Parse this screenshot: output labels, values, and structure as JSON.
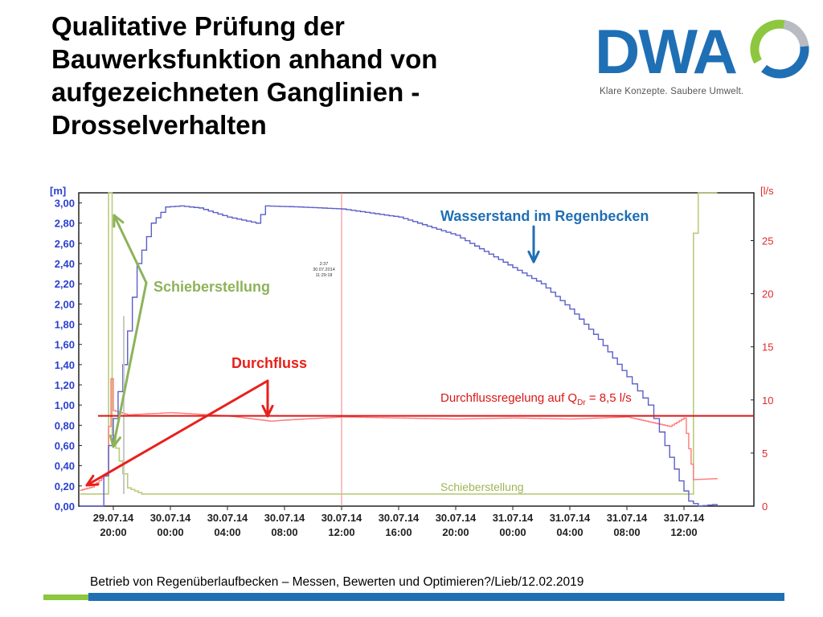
{
  "slide": {
    "title_lines": [
      "Qualitative Prüfung der",
      "Bauwerksfunktion anhand von",
      "aufgezeichneten Ganglinien -",
      "Drosselverhalten"
    ],
    "logo": {
      "text": "DWA",
      "tagline": "Klare Konzepte. Saubere Umwelt."
    },
    "footer": "Betrieb von Regenüberlaufbecken – Messen, Bewerten und Optimieren?/Lieb/12.02.2019"
  },
  "colors": {
    "level_blue": "#5b5fc8",
    "flow_red": "#ff7a7a",
    "setpoint_red": "#d81818",
    "gate_green": "#b9cc7a",
    "annot_blue": "#1f6fb5",
    "annot_green": "#8db35a",
    "annot_red": "#e8201b",
    "left_axis": "#2a3fd0",
    "right_axis": "#e02a2a"
  },
  "chart_data": {
    "type": "line",
    "y_left": {
      "unit_label": "[m]",
      "ylim": [
        0,
        3.1
      ],
      "ticks": [
        "0,00",
        "0,20",
        "0,40",
        "0,60",
        "0,80",
        "1,00",
        "1,20",
        "1,40",
        "1,60",
        "1,80",
        "2,00",
        "2,20",
        "2,40",
        "2,60",
        "2,80",
        "3,00"
      ]
    },
    "y_right": {
      "unit_label": "[l/s",
      "ylim": [
        0,
        29.5
      ],
      "ticks": [
        "0",
        "5",
        "10",
        "15",
        "20",
        "25"
      ]
    },
    "x_ticks": [
      {
        "date": "29.07.14",
        "time": "20:00"
      },
      {
        "date": "30.07.14",
        "time": "00:00"
      },
      {
        "date": "30.07.14",
        "time": "04:00"
      },
      {
        "date": "30.07.14",
        "time": "08:00"
      },
      {
        "date": "30.07.14",
        "time": "12:00"
      },
      {
        "date": "30.07.14",
        "time": "16:00"
      },
      {
        "date": "30.07.14",
        "time": "20:00"
      },
      {
        "date": "31.07.14",
        "time": "00:00"
      },
      {
        "date": "31.07.14",
        "time": "04:00"
      },
      {
        "date": "31.07.14",
        "time": "08:00"
      },
      {
        "date": "31.07.14",
        "time": "12:00"
      }
    ],
    "series": [
      {
        "name": "Wasserstand im Regenbecken",
        "axis": "left",
        "points": [
          [
            "29.07.14 17:40",
            0.0
          ],
          [
            "29.07.14 19:00",
            0.0
          ],
          [
            "29.07.14 19:40",
            0.6
          ],
          [
            "29.07.14 20:40",
            1.4
          ],
          [
            "29.07.14 21:40",
            2.4
          ],
          [
            "29.07.14 22:40",
            2.8
          ],
          [
            "29.07.14 23:40",
            2.96
          ],
          [
            "30.07.14 00:40",
            2.97
          ],
          [
            "30.07.14 02:00",
            2.95
          ],
          [
            "30.07.14 04:00",
            2.86
          ],
          [
            "30.07.14 06:00",
            2.8
          ],
          [
            "30.07.14 06:40",
            2.97
          ],
          [
            "30.07.14 09:00",
            2.96
          ],
          [
            "30.07.14 12:00",
            2.94
          ],
          [
            "30.07.14 16:00",
            2.86
          ],
          [
            "30.07.14 20:00",
            2.68
          ],
          [
            "31.07.14 00:00",
            2.36
          ],
          [
            "31.07.14 02:00",
            2.2
          ],
          [
            "31.07.14 04:00",
            1.95
          ],
          [
            "31.07.14 06:00",
            1.65
          ],
          [
            "31.07.14 08:00",
            1.28
          ],
          [
            "31.07.14 09:30",
            1.0
          ],
          [
            "31.07.14 10:40",
            0.6
          ],
          [
            "31.07.14 11:40",
            0.25
          ],
          [
            "31.07.14 12:20",
            0.05
          ],
          [
            "31.07.14 13:00",
            0.0
          ],
          [
            "31.07.14 14:20",
            0.02
          ]
        ]
      },
      {
        "name": "Durchfluss",
        "axis": "right",
        "points": [
          [
            "29.07.14 17:40",
            1.5
          ],
          [
            "29.07.14 18:30",
            1.8
          ],
          [
            "29.07.14 19:30",
            3.0
          ],
          [
            "29.07.14 19:50",
            12.0
          ],
          [
            "29.07.14 20:00",
            9.0
          ],
          [
            "29.07.14 21:00",
            8.6
          ],
          [
            "30.07.14 00:00",
            8.8
          ],
          [
            "30.07.14 04:00",
            8.5
          ],
          [
            "30.07.14 07:00",
            8.0
          ],
          [
            "30.07.14 08:00",
            8.1
          ],
          [
            "30.07.14 12:00",
            8.4
          ],
          [
            "30.07.14 16:00",
            8.3
          ],
          [
            "30.07.14 20:00",
            8.2
          ],
          [
            "31.07.14 00:00",
            8.3
          ],
          [
            "31.07.14 04:00",
            8.2
          ],
          [
            "31.07.14 08:00",
            8.4
          ],
          [
            "31.07.14 11:00",
            7.5
          ],
          [
            "31.07.14 12:00",
            8.3
          ],
          [
            "31.07.14 12:40",
            2.5
          ],
          [
            "31.07.14 14:20",
            2.6
          ]
        ]
      },
      {
        "name": "Schieberstellung",
        "axis": "left",
        "points": [
          [
            "29.07.14 17:40",
            0.12
          ],
          [
            "29.07.14 19:30",
            0.12
          ],
          [
            "29.07.14 19:40",
            3.1
          ],
          [
            "29.07.14 19:55",
            0.7
          ],
          [
            "29.07.14 20:40",
            0.32
          ],
          [
            "29.07.14 21:00",
            0.18
          ],
          [
            "29.07.14 22:00",
            0.12
          ],
          [
            "31.07.14 12:20",
            0.12
          ],
          [
            "31.07.14 12:40",
            2.7
          ],
          [
            "31.07.14 13:00",
            3.1
          ],
          [
            "31.07.14 14:20",
            3.1
          ]
        ]
      }
    ],
    "setpoint": {
      "value": 8.5,
      "label": "Durchflussregelung auf Q",
      "sub": "Dr",
      "suffix": " = 8,5 l/s"
    },
    "annotations": {
      "level": "Wasserstand im Regenbecken",
      "gate": "Schieberstellung",
      "flow": "Durchfluss",
      "gate_inline": "Schieberstellung",
      "marker_text": [
        "2:37",
        "30.07.2014",
        "11:29:18"
      ]
    }
  }
}
